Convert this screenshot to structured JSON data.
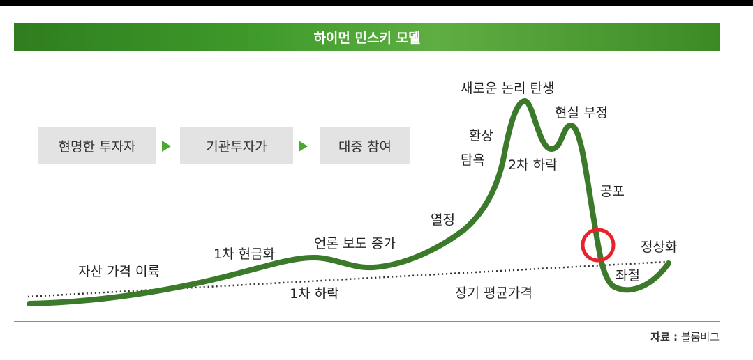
{
  "title": "하이먼 민스키 모델",
  "stages": [
    "현명한 투자자",
    "기관투자가",
    "대중 참여"
  ],
  "phases": {
    "asset_price_rise": "자산 가격 이륙",
    "first_monetization": "1차 현금화",
    "first_decline": "1차 하락",
    "media_coverage_increase": "언론 보도 증가",
    "enthusiasm": "열정",
    "euphoria": "환상",
    "greed": "탐욕",
    "new_paradigm": "새로운 논리 탄생",
    "second_decline": "2차 하락",
    "denial": "현실 부정",
    "fear": "공포",
    "capitulation": "좌절",
    "normalization": "정상화",
    "long_term_mean": "장기 평균가격"
  },
  "source": {
    "label": "자료 :",
    "value": "블룸버그"
  },
  "colors": {
    "banner": "#3f9b2a",
    "curve": "#3b7a2a",
    "arrow": "#4aa82e",
    "marker": "#e8212b",
    "stage_box": "#e3e3e3"
  }
}
